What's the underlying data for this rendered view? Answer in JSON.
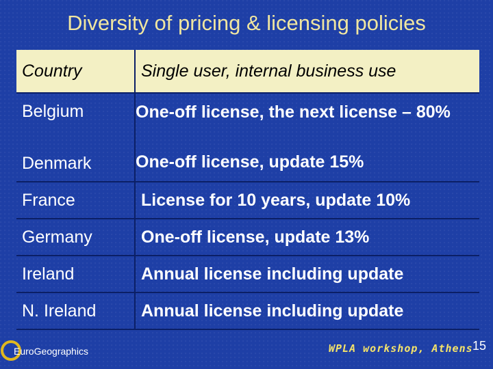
{
  "title": "Diversity of pricing & licensing policies",
  "table": {
    "header": {
      "country": "Country",
      "policy": "Single user, internal business use"
    },
    "rows": [
      {
        "country": "Belgium",
        "policy": "One-off license, the next license – 80%"
      },
      {
        "country": "Denmark",
        "policy": "One-off license, update 15%"
      },
      {
        "country": "France",
        "policy": "License for 10 years, update 10%"
      },
      {
        "country": "Germany",
        "policy": "One-off license, update 13%"
      },
      {
        "country": "Ireland",
        "policy": "Annual license including update"
      },
      {
        "country": "N. Ireland",
        "policy": "Annual license including update"
      }
    ]
  },
  "footer": {
    "logo_text": "EuroGeographics",
    "event": "WPLA workshop, Athens",
    "page_number": "15"
  }
}
